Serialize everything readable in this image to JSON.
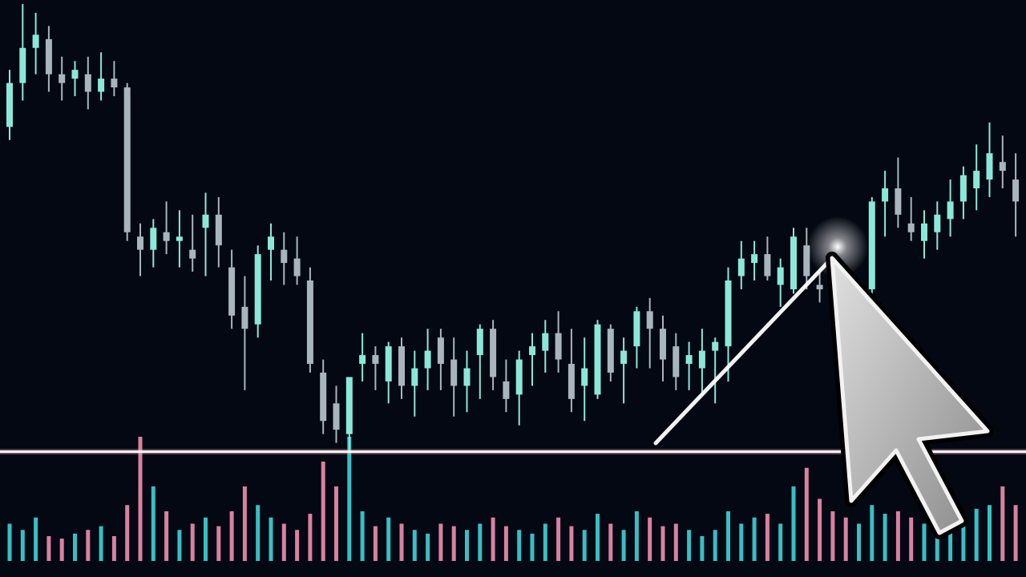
{
  "chart_data": {
    "type": "candlestick",
    "open": [
      72,
      82,
      90,
      92,
      84,
      83,
      84,
      80,
      83,
      81,
      47,
      44,
      48,
      46,
      44,
      49,
      52,
      40,
      31,
      27,
      44,
      44,
      42,
      37,
      16,
      9,
      2,
      18,
      20,
      14,
      22,
      13,
      17,
      24,
      19,
      13,
      20,
      26,
      14,
      11,
      20,
      21,
      25,
      18,
      13,
      11,
      26,
      18,
      22,
      30,
      26,
      22,
      18,
      17,
      21,
      22,
      38,
      41,
      43,
      36,
      35,
      45,
      36,
      34,
      32,
      31,
      35,
      55,
      58,
      50,
      46,
      48,
      51,
      55,
      58,
      60,
      64,
      60
    ],
    "high": [
      85,
      100,
      98,
      95,
      88,
      87,
      88,
      89,
      87,
      82,
      50,
      51,
      55,
      53,
      52,
      57,
      56,
      44,
      38,
      45,
      50,
      48,
      47,
      40,
      19,
      13,
      14,
      25,
      22,
      23,
      24,
      21,
      26,
      26,
      24,
      21,
      27,
      28,
      19,
      21,
      25,
      28,
      30,
      26,
      24,
      28,
      27,
      24,
      31,
      33,
      29,
      25,
      23,
      26,
      24,
      40,
      46,
      46,
      47,
      42,
      49,
      49,
      39,
      38,
      36,
      36,
      56,
      62,
      65,
      56,
      53,
      55,
      60,
      63,
      68,
      73,
      70,
      66
    ],
    "low": [
      69,
      78,
      84,
      80,
      78,
      79,
      76,
      78,
      79,
      46,
      38,
      40,
      43,
      40,
      39,
      38,
      40,
      26,
      12,
      24,
      37,
      36,
      36,
      16,
      2,
      0,
      -2,
      14,
      12,
      9,
      10,
      6,
      12,
      12,
      6,
      7,
      10,
      12,
      7,
      4,
      13,
      16,
      16,
      7,
      5,
      10,
      14,
      9,
      17,
      17,
      14,
      12,
      12,
      11,
      9,
      14,
      35,
      37,
      37,
      31,
      34,
      35,
      32,
      29,
      28,
      30,
      33,
      47,
      49,
      46,
      42,
      44,
      47,
      51,
      53,
      56,
      58,
      47
    ],
    "close": [
      82,
      90,
      93,
      84,
      82,
      85,
      80,
      83,
      81,
      48,
      44,
      49,
      46,
      47,
      42,
      52,
      45,
      29,
      26,
      43,
      47,
      41,
      38,
      18,
      5,
      3,
      15,
      20,
      18,
      22,
      13,
      17,
      21,
      18,
      13,
      17,
      26,
      15,
      10,
      19,
      22,
      25,
      19,
      10,
      17,
      27,
      16,
      21,
      30,
      26,
      19,
      15,
      20,
      21,
      23,
      37,
      42,
      43,
      38,
      40,
      47,
      38,
      35,
      32,
      30,
      35,
      55,
      58,
      52,
      48,
      50,
      52,
      55,
      61,
      62,
      66,
      62,
      55
    ],
    "volume": [
      30,
      25,
      35,
      20,
      18,
      22,
      25,
      28,
      20,
      45,
      100,
      60,
      40,
      25,
      30,
      35,
      28,
      40,
      60,
      45,
      35,
      30,
      25,
      38,
      80,
      60,
      100,
      40,
      28,
      35,
      30,
      25,
      22,
      30,
      28,
      25,
      30,
      35,
      28,
      25,
      22,
      30,
      35,
      28,
      25,
      38,
      30,
      25,
      40,
      35,
      28,
      30,
      25,
      20,
      25,
      40,
      30,
      35,
      38,
      30,
      60,
      75,
      50,
      40,
      35,
      30,
      45,
      38,
      40,
      35,
      30,
      35,
      40,
      38,
      42,
      45,
      60,
      45
    ],
    "up_color": "#8be8d8",
    "down_color": "#a9b5bd",
    "volume_up_color": "#3fd3d9",
    "volume_down_color": "#f08fb0",
    "ylim": [
      -5,
      100
    ],
    "volume_ylim": [
      0,
      100
    ],
    "support_level": -2
  }
}
